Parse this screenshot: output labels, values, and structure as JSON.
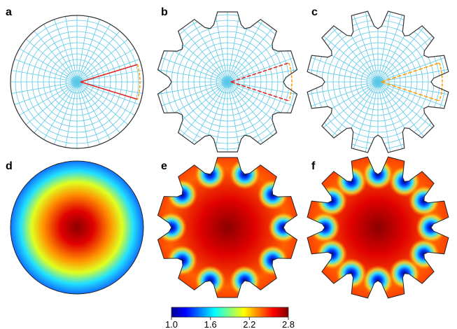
{
  "panels": [
    {
      "label": "a"
    },
    {
      "label": "b"
    },
    {
      "label": "c"
    },
    {
      "label": "d"
    },
    {
      "label": "e"
    },
    {
      "label": "f"
    }
  ],
  "colorbar": {
    "lim": [
      1,
      2.8
    ],
    "ticks": [
      {
        "value": 1,
        "label": "1.0"
      },
      {
        "value": 1.6,
        "label": "1.6"
      },
      {
        "value": 2.2,
        "label": "2.2"
      },
      {
        "value": 2.8,
        "label": "2.8"
      }
    ]
  }
}
